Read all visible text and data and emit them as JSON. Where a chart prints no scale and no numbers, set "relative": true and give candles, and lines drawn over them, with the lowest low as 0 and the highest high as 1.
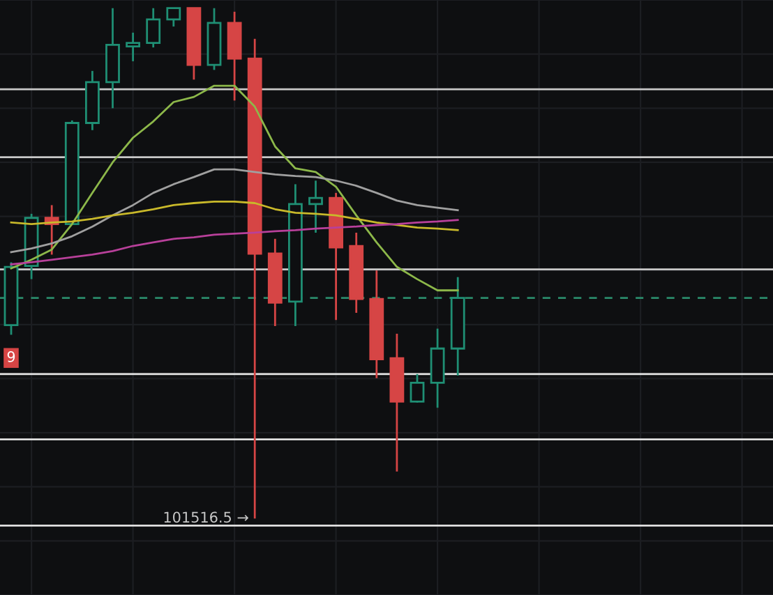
{
  "chart_data": {
    "type": "candlestick",
    "relative": true,
    "grid": true,
    "categories": [
      null,
      null,
      null,
      null,
      null,
      null,
      null,
      null,
      null,
      null,
      null,
      null,
      null,
      null,
      null,
      null,
      null,
      null,
      null,
      null,
      null,
      null,
      null
    ],
    "ohlc": [
      [
        0.379,
        0.502,
        0.36,
        0.493
      ],
      [
        0.495,
        0.597,
        0.469,
        0.589
      ],
      [
        0.589,
        0.614,
        0.517,
        0.577
      ],
      [
        0.577,
        0.78,
        0.577,
        0.775
      ],
      [
        0.775,
        0.877,
        0.761,
        0.855
      ],
      [
        0.855,
        1,
        0.804,
        0.928
      ],
      [
        0.925,
        0.952,
        0.896,
        0.932
      ],
      [
        0.932,
        1,
        0.923,
        0.978
      ],
      [
        0.978,
        1,
        0.964,
        1
      ],
      [
        1,
        1,
        0.86,
        0.889
      ],
      [
        0.889,
        1,
        0.879,
        0.971
      ],
      [
        0.971,
        0.993,
        0.819,
        0.901
      ],
      [
        0.901,
        0.94,
        0,
        0.519
      ],
      [
        0.519,
        0.548,
        0.377,
        0.423
      ],
      [
        0.425,
        0.655,
        0.377,
        0.616
      ],
      [
        0.616,
        0.662,
        0.56,
        0.628
      ],
      [
        0.628,
        0.638,
        0.389,
        0.531
      ],
      [
        0.534,
        0.56,
        0.403,
        0.43
      ],
      [
        0.43,
        0.486,
        0.275,
        0.312
      ],
      [
        0.314,
        0.362,
        0.092,
        0.229
      ],
      [
        0.229,
        0.283,
        0.227,
        0.266
      ],
      [
        0.266,
        0.372,
        0.217,
        0.333
      ],
      [
        0.333,
        0.473,
        0.28,
        0.432
      ]
    ],
    "colors": [
      "#1f8f74",
      "#1f8f74",
      "#d64545",
      "#1f8f74",
      "#1f8f74",
      "#1f8f74",
      "#1f8f74",
      "#1f8f74",
      "#1f8f74",
      "#d64545",
      "#1f8f74",
      "#d64545",
      "#d64545",
      "#d64545",
      "#1f8f74",
      "#1f8f74",
      "#d64545",
      "#d64545",
      "#d64545",
      "#d64545",
      "#1f8f74",
      "#1f8f74",
      "#1f8f74"
    ],
    "series": [
      {
        "type": "line",
        "color": "#8db84a",
        "values": [
          0.49,
          0.507,
          0.527,
          0.577,
          0.638,
          0.698,
          0.746,
          0.778,
          0.816,
          0.826,
          0.848,
          0.848,
          0.807,
          0.729,
          0.686,
          0.679,
          0.65,
          0.594,
          0.541,
          0.493,
          0.469,
          0.447,
          0.447
        ]
      },
      {
        "type": "line",
        "color": "#a0a0a0",
        "values": [
          0.522,
          0.529,
          0.539,
          0.553,
          0.572,
          0.594,
          0.614,
          0.638,
          0.655,
          0.669,
          0.684,
          0.684,
          0.679,
          0.674,
          0.671,
          0.669,
          0.662,
          0.652,
          0.638,
          0.623,
          0.614,
          0.609,
          0.604
        ]
      },
      {
        "type": "line",
        "color": "#c9b92a",
        "values": [
          0.58,
          0.577,
          0.58,
          0.582,
          0.587,
          0.594,
          0.599,
          0.606,
          0.614,
          0.618,
          0.621,
          0.621,
          0.618,
          0.606,
          0.599,
          0.597,
          0.594,
          0.587,
          0.58,
          0.575,
          0.57,
          0.568,
          0.565
        ]
      },
      {
        "type": "line",
        "color": "#b8409a",
        "values": [
          0.498,
          0.502,
          0.507,
          0.512,
          0.517,
          0.524,
          0.534,
          0.541,
          0.548,
          0.551,
          0.556,
          0.558,
          0.56,
          0.563,
          0.565,
          0.568,
          0.57,
          0.572,
          0.575,
          0.577,
          0.58,
          0.582,
          0.585
        ]
      }
    ],
    "ref_lines": [
      {
        "axis": "y",
        "value": 0.841,
        "color": "#c8c8c8"
      },
      {
        "axis": "y",
        "value": 0.708,
        "color": "#c8c8c8"
      },
      {
        "axis": "y",
        "value": 0.488,
        "color": "#c8c8c8"
      },
      {
        "axis": "y",
        "value": 0.432,
        "color": "#2a8a6a",
        "line_style": "dashed"
      },
      {
        "axis": "y",
        "value": 0.283,
        "color": "#e8e8e8"
      },
      {
        "axis": "y",
        "value": 0.155,
        "color": "#e0e0e0"
      },
      {
        "axis": "y",
        "value": -0.014,
        "color": "#e0e0e0"
      }
    ],
    "annotations": [
      "9",
      "101516.5 →"
    ]
  }
}
